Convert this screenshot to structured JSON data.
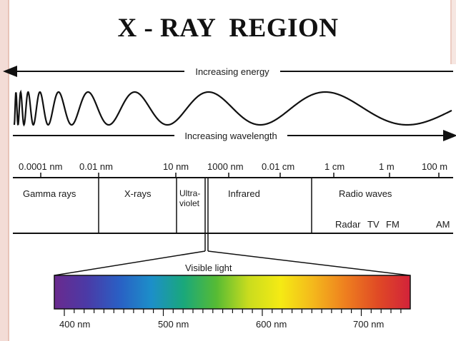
{
  "title": "X - RAY  REGION",
  "energy_label": "Increasing energy",
  "wavelength_label": "Increasing wavelength",
  "scale_labels": [
    "0.0001 nm",
    "0.01 nm",
    "10 nm",
    "1000 nm",
    "0.01 cm",
    "1 cm",
    "1 m",
    "100 m"
  ],
  "regions": {
    "gamma": "Gamma rays",
    "xray": "X-rays",
    "uv_line1": "Ultra-",
    "uv_line2": "violet",
    "infrared": "Infrared",
    "radio": "Radio waves"
  },
  "radio_bands": [
    "Radar",
    "TV",
    "FM",
    "AM"
  ],
  "visible_label": "Visible light",
  "visible_ticks": [
    "400 nm",
    "500 nm",
    "600 nm",
    "700 nm"
  ],
  "colors": {
    "spectrum": [
      "#6a2a8e",
      "#4b3aa6",
      "#2a5fc4",
      "#1c8fc9",
      "#1aa87a",
      "#56bb34",
      "#c9dc1e",
      "#f5ea14",
      "#f4b81c",
      "#ee7f1f",
      "#e04a25",
      "#d2223a"
    ]
  }
}
